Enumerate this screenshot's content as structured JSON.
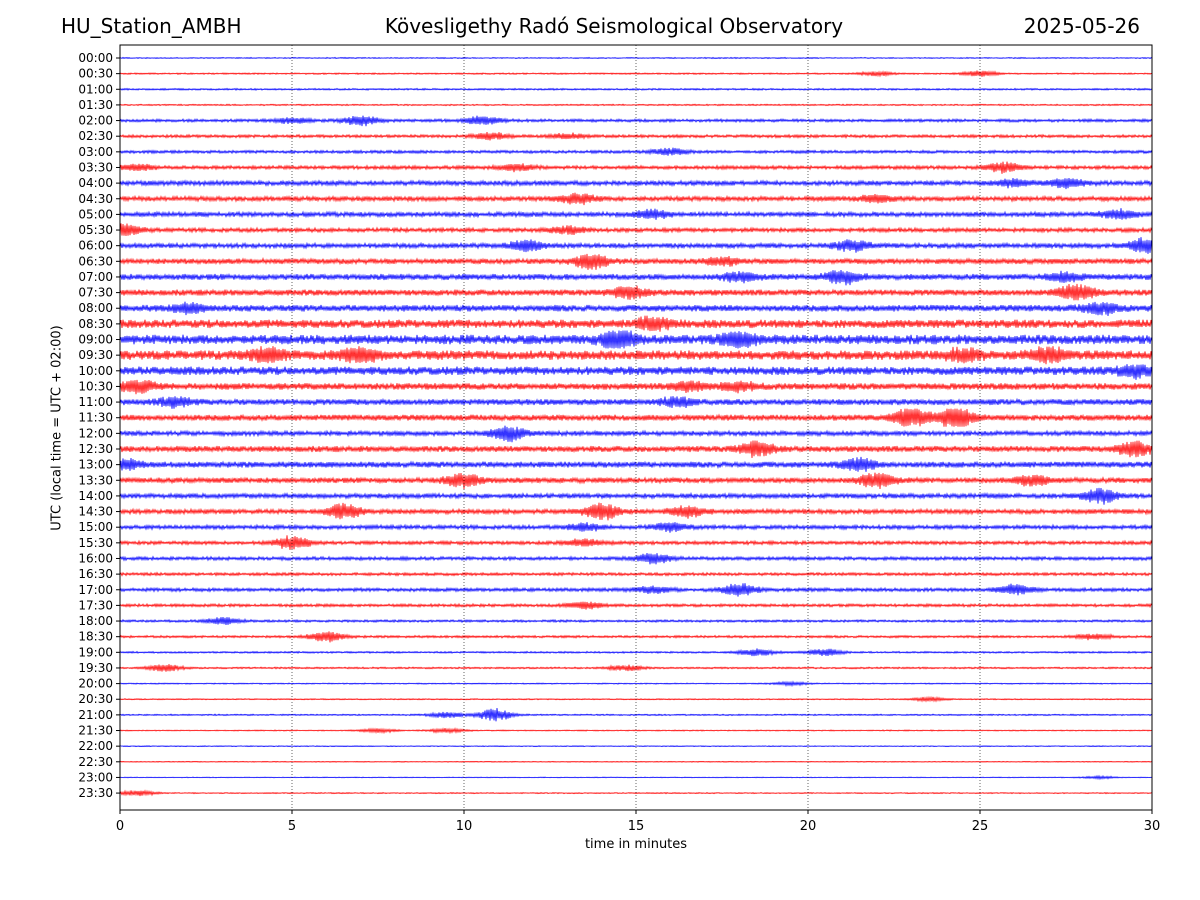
{
  "header": {
    "station": "HU_Station_AMBH",
    "observatory": "Kövesligethy Radó Seismological Observatory",
    "date": "2025-05-26"
  },
  "colors": {
    "blue_trace": "#0000ff",
    "red_trace": "#ff0000",
    "grid": "#000000",
    "background": "#ffffff"
  },
  "chart_data": {
    "type": "line",
    "xlabel": "time in minutes",
    "ylabel": "UTC (local time = UTC + 02:00)",
    "xlim": [
      0,
      30
    ],
    "x_ticks": [
      0,
      5,
      10,
      15,
      20,
      25,
      30
    ],
    "grid": "vertical dotted lines at every 5 minutes",
    "trace_color_order": [
      "blue",
      "red"
    ],
    "rows": [
      "00:00",
      "00:30",
      "01:00",
      "01:30",
      "02:00",
      "02:30",
      "03:00",
      "03:30",
      "04:00",
      "04:30",
      "05:00",
      "05:30",
      "06:00",
      "06:30",
      "07:00",
      "07:30",
      "08:00",
      "08:30",
      "09:00",
      "09:30",
      "10:00",
      "10:30",
      "11:00",
      "11:30",
      "12:00",
      "12:30",
      "13:00",
      "13:30",
      "14:00",
      "14:30",
      "15:00",
      "15:30",
      "16:00",
      "16:30",
      "17:00",
      "17:30",
      "18:00",
      "18:30",
      "19:00",
      "19:30",
      "20:00",
      "20:30",
      "21:00",
      "21:30",
      "22:00",
      "22:30",
      "23:00",
      "23:30"
    ],
    "noise_level": [
      0.4,
      0.5,
      0.6,
      0.5,
      1.0,
      1.0,
      1.0,
      1.2,
      1.6,
      1.6,
      1.6,
      1.4,
      1.6,
      1.8,
      2.0,
      2.0,
      2.2,
      2.8,
      3.2,
      3.2,
      2.8,
      2.2,
      2.0,
      2.0,
      1.6,
      2.0,
      2.0,
      1.8,
      1.6,
      1.6,
      1.4,
      1.2,
      1.2,
      1.0,
      1.2,
      1.0,
      0.8,
      0.8,
      0.6,
      0.6,
      0.4,
      0.4,
      0.5,
      0.4,
      0.3,
      0.3,
      0.3,
      0.4
    ],
    "bursts": [
      {
        "row": "00:30",
        "minute": 25.0,
        "amp": 2.0
      },
      {
        "row": "00:30",
        "minute": 22.0,
        "amp": 1.5
      },
      {
        "row": "02:00",
        "minute": 7.0,
        "amp": 3.5
      },
      {
        "row": "02:00",
        "minute": 10.5,
        "amp": 3.0
      },
      {
        "row": "02:00",
        "minute": 5.0,
        "amp": 2.0
      },
      {
        "row": "02:30",
        "minute": 10.8,
        "amp": 2.5
      },
      {
        "row": "02:30",
        "minute": 13.0,
        "amp": 1.8
      },
      {
        "row": "03:00",
        "minute": 16.0,
        "amp": 2.5
      },
      {
        "row": "03:30",
        "minute": 11.5,
        "amp": 2.5
      },
      {
        "row": "03:30",
        "minute": 25.7,
        "amp": 3.5
      },
      {
        "row": "03:30",
        "minute": 0.5,
        "amp": 2.0
      },
      {
        "row": "04:00",
        "minute": 27.5,
        "amp": 3.0
      },
      {
        "row": "04:00",
        "minute": 26.0,
        "amp": 2.5
      },
      {
        "row": "04:30",
        "minute": 13.3,
        "amp": 3.5
      },
      {
        "row": "04:30",
        "minute": 22.0,
        "amp": 2.5
      },
      {
        "row": "05:00",
        "minute": 15.5,
        "amp": 3.0
      },
      {
        "row": "05:00",
        "minute": 29.0,
        "amp": 3.0
      },
      {
        "row": "05:30",
        "minute": 0.1,
        "amp": 4.0
      },
      {
        "row": "05:30",
        "minute": 13.0,
        "amp": 2.5
      },
      {
        "row": "06:00",
        "minute": 11.8,
        "amp": 3.5
      },
      {
        "row": "06:00",
        "minute": 29.8,
        "amp": 5.0
      },
      {
        "row": "06:00",
        "minute": 21.3,
        "amp": 4.0
      },
      {
        "row": "06:30",
        "minute": 13.7,
        "amp": 5.0
      },
      {
        "row": "06:30",
        "minute": 17.5,
        "amp": 3.0
      },
      {
        "row": "07:00",
        "minute": 21.0,
        "amp": 4.5
      },
      {
        "row": "07:00",
        "minute": 18.0,
        "amp": 3.0
      },
      {
        "row": "07:00",
        "minute": 27.5,
        "amp": 3.0
      },
      {
        "row": "07:30",
        "minute": 14.8,
        "amp": 4.0
      },
      {
        "row": "07:30",
        "minute": 27.8,
        "amp": 6.0
      },
      {
        "row": "08:00",
        "minute": 2.0,
        "amp": 3.0
      },
      {
        "row": "08:00",
        "minute": 28.5,
        "amp": 4.0
      },
      {
        "row": "08:30",
        "minute": 15.5,
        "amp": 4.0
      },
      {
        "row": "09:00",
        "minute": 14.5,
        "amp": 6.0
      },
      {
        "row": "09:00",
        "minute": 18.0,
        "amp": 5.0
      },
      {
        "row": "09:30",
        "minute": 7.0,
        "amp": 4.5
      },
      {
        "row": "09:30",
        "minute": 4.3,
        "amp": 4.0
      },
      {
        "row": "09:30",
        "minute": 24.5,
        "amp": 4.0
      },
      {
        "row": "09:30",
        "minute": 27.0,
        "amp": 4.5
      },
      {
        "row": "10:00",
        "minute": 29.5,
        "amp": 4.0
      },
      {
        "row": "10:30",
        "minute": 0.5,
        "amp": 4.0
      },
      {
        "row": "10:30",
        "minute": 16.5,
        "amp": 3.0
      },
      {
        "row": "10:30",
        "minute": 18.0,
        "amp": 3.0
      },
      {
        "row": "11:00",
        "minute": 16.2,
        "amp": 3.0
      },
      {
        "row": "11:00",
        "minute": 1.6,
        "amp": 3.0
      },
      {
        "row": "11:30",
        "minute": 23.0,
        "amp": 6.5
      },
      {
        "row": "11:30",
        "minute": 24.3,
        "amp": 8.0
      },
      {
        "row": "12:00",
        "minute": 11.3,
        "amp": 5.0
      },
      {
        "row": "12:30",
        "minute": 18.5,
        "amp": 5.0
      },
      {
        "row": "12:30",
        "minute": 29.5,
        "amp": 5.0
      },
      {
        "row": "13:00",
        "minute": 21.5,
        "amp": 4.0
      },
      {
        "row": "13:00",
        "minute": 0.1,
        "amp": 3.5
      },
      {
        "row": "13:30",
        "minute": 10.0,
        "amp": 5.0
      },
      {
        "row": "13:30",
        "minute": 22.0,
        "amp": 5.0
      },
      {
        "row": "13:30",
        "minute": 26.5,
        "amp": 3.5
      },
      {
        "row": "14:00",
        "minute": 28.5,
        "amp": 5.0
      },
      {
        "row": "14:30",
        "minute": 6.5,
        "amp": 5.0
      },
      {
        "row": "14:30",
        "minute": 14.0,
        "amp": 6.0
      },
      {
        "row": "14:30",
        "minute": 16.5,
        "amp": 4.0
      },
      {
        "row": "15:00",
        "minute": 16.0,
        "amp": 3.0
      },
      {
        "row": "15:00",
        "minute": 13.5,
        "amp": 2.5
      },
      {
        "row": "15:30",
        "minute": 5.0,
        "amp": 4.5
      },
      {
        "row": "15:30",
        "minute": 13.5,
        "amp": 2.5
      },
      {
        "row": "16:00",
        "minute": 15.5,
        "amp": 3.5
      },
      {
        "row": "17:00",
        "minute": 18.0,
        "amp": 4.5
      },
      {
        "row": "17:00",
        "minute": 26.0,
        "amp": 3.5
      },
      {
        "row": "17:00",
        "minute": 15.5,
        "amp": 2.5
      },
      {
        "row": "17:30",
        "minute": 13.5,
        "amp": 2.5
      },
      {
        "row": "18:00",
        "minute": 3.0,
        "amp": 2.5
      },
      {
        "row": "18:30",
        "minute": 6.0,
        "amp": 3.5
      },
      {
        "row": "18:30",
        "minute": 28.3,
        "amp": 2.0
      },
      {
        "row": "19:00",
        "minute": 18.5,
        "amp": 2.5
      },
      {
        "row": "19:00",
        "minute": 20.5,
        "amp": 2.5
      },
      {
        "row": "19:30",
        "minute": 1.3,
        "amp": 2.5
      },
      {
        "row": "19:30",
        "minute": 14.7,
        "amp": 2.0
      },
      {
        "row": "20:00",
        "minute": 19.5,
        "amp": 1.2
      },
      {
        "row": "20:30",
        "minute": 23.5,
        "amp": 1.5
      },
      {
        "row": "21:00",
        "minute": 10.9,
        "amp": 4.5
      },
      {
        "row": "21:00",
        "minute": 9.5,
        "amp": 2.0
      },
      {
        "row": "21:30",
        "minute": 7.5,
        "amp": 1.5
      },
      {
        "row": "21:30",
        "minute": 9.5,
        "amp": 1.5
      },
      {
        "row": "23:00",
        "minute": 28.5,
        "amp": 1.0
      },
      {
        "row": "23:30",
        "minute": 0.5,
        "amp": 2.0
      }
    ]
  }
}
